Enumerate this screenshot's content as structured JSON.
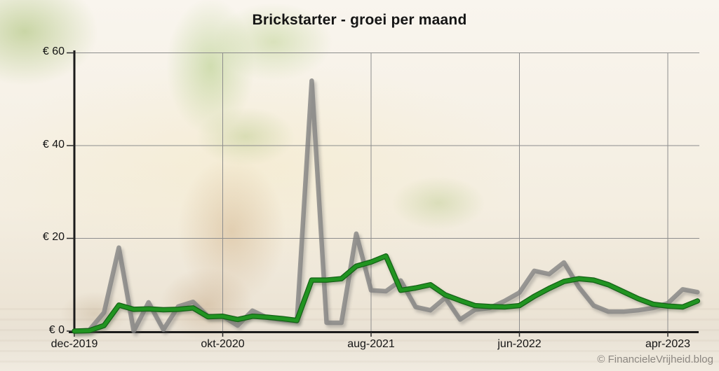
{
  "title": "Brickstarter - groei per maand",
  "watermark": "© FinancieleVrijheid.blog",
  "colors": {
    "gray_line": "#808080",
    "green_line": "#219421",
    "axis": "#1b1b1b",
    "gridline": "#8d8d8d",
    "text": "#141414",
    "watermark_text": "#8d8882",
    "background": "#f4efe5"
  },
  "chart_data": {
    "type": "line",
    "title": "Brickstarter - groei per maand",
    "currency": "EUR",
    "grid": true,
    "legend_position": "none",
    "ylim": [
      0,
      60
    ],
    "y_ticks": [
      {
        "value": 0,
        "label": "€ 0"
      },
      {
        "value": 20,
        "label": "€ 20"
      },
      {
        "value": 40,
        "label": "€ 40"
      },
      {
        "value": 60,
        "label": "€ 60"
      }
    ],
    "x_ticks": [
      {
        "month_index": 0,
        "label": "dec-2019"
      },
      {
        "month_index": 10,
        "label": "okt-2020"
      },
      {
        "month_index": 20,
        "label": "aug-2021"
      },
      {
        "month_index": 30,
        "label": "jun-2022"
      },
      {
        "month_index": 40,
        "label": "apr-2023"
      }
    ],
    "x": [
      "dec-2019",
      "jan-2020",
      "feb-2020",
      "mrt-2020",
      "apr-2020",
      "mei-2020",
      "jun-2020",
      "jul-2020",
      "aug-2020",
      "sep-2020",
      "okt-2020",
      "nov-2020",
      "dec-2020",
      "jan-2021",
      "feb-2021",
      "mrt-2021",
      "apr-2021",
      "mei-2021",
      "jun-2021",
      "jul-2021",
      "aug-2021",
      "sep-2021",
      "okt-2021",
      "nov-2021",
      "dec-2021",
      "jan-2022",
      "feb-2022",
      "mrt-2022",
      "apr-2022",
      "mei-2022",
      "jun-2022",
      "jul-2022",
      "aug-2022",
      "sep-2022",
      "okt-2022",
      "nov-2022",
      "dec-2022",
      "jan-2023",
      "feb-2023",
      "mrt-2023",
      "apr-2023",
      "mei-2023",
      "jun-2023"
    ],
    "series": [
      {
        "name": "gray-line",
        "color": "#808080",
        "values": [
          0,
          0.2,
          4,
          18,
          0,
          6.2,
          0.3,
          5.3,
          6.3,
          3.2,
          3.2,
          1.2,
          4.4,
          2.9,
          2.4,
          2.1,
          54,
          1.8,
          1.8,
          21,
          8.8,
          8.6,
          10.9,
          5.2,
          4.5,
          7.2,
          2.5,
          4.6,
          5,
          6.5,
          8.3,
          13,
          12.3,
          14.8,
          9.5,
          5.5,
          4.2,
          4.2,
          4.5,
          5,
          6,
          9,
          8.4
        ]
      },
      {
        "name": "green-line",
        "color": "#219421",
        "values": [
          0,
          0.1,
          1.2,
          5.6,
          4.7,
          4.8,
          4.6,
          4.7,
          5,
          3.1,
          3.2,
          2.5,
          3.2,
          3,
          2.7,
          2.3,
          11,
          11,
          11.3,
          14,
          14.9,
          16.2,
          8.8,
          9.3,
          10,
          7.8,
          6.6,
          5.5,
          5.3,
          5.2,
          5.5,
          7.5,
          9.2,
          10.7,
          11.3,
          11,
          10,
          8.5,
          7,
          5.8,
          5.4,
          5.2,
          6.5
        ]
      }
    ]
  }
}
